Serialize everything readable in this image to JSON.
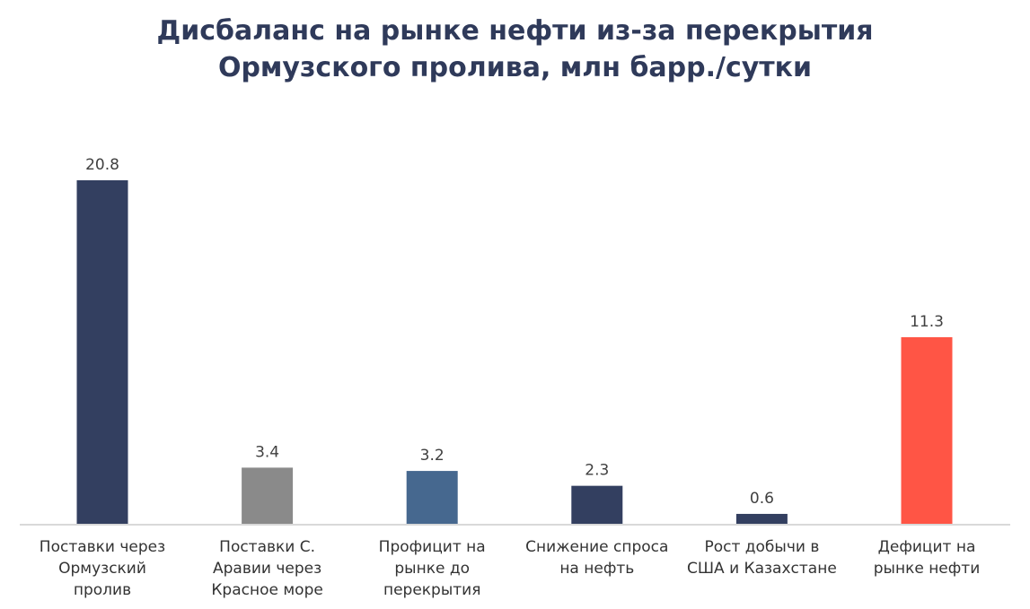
{
  "chart_data": {
    "type": "bar",
    "title_lines": [
      "Дисбаланс на рынке нефти из-за перекрытия",
      "Ормузского пролива, млн барр./сутки"
    ],
    "categories": [
      [
        "Поставки через",
        "Ормузский",
        "пролив"
      ],
      [
        "Поставки С.",
        "Аравии через",
        "Красное море"
      ],
      [
        "Профицит на",
        "рынке до",
        "перекрытия"
      ],
      [
        "Снижение спроса",
        "на нефть"
      ],
      [
        "Рост добычи в",
        "США и Казахстане"
      ],
      [
        "Дефицит на",
        "рынке нефти"
      ]
    ],
    "values": [
      20.8,
      3.4,
      3.2,
      2.3,
      0.6,
      11.3
    ],
    "data_labels": [
      "20.8",
      "3.4",
      "3.2",
      "2.3",
      "0.6",
      "11.3"
    ],
    "colors": [
      "#333f60",
      "#8a8a8a",
      "#46688f",
      "#333f60",
      "#333f60",
      "#ff5545"
    ],
    "ylim": [
      0,
      22
    ],
    "grid": false,
    "legend": "none"
  }
}
